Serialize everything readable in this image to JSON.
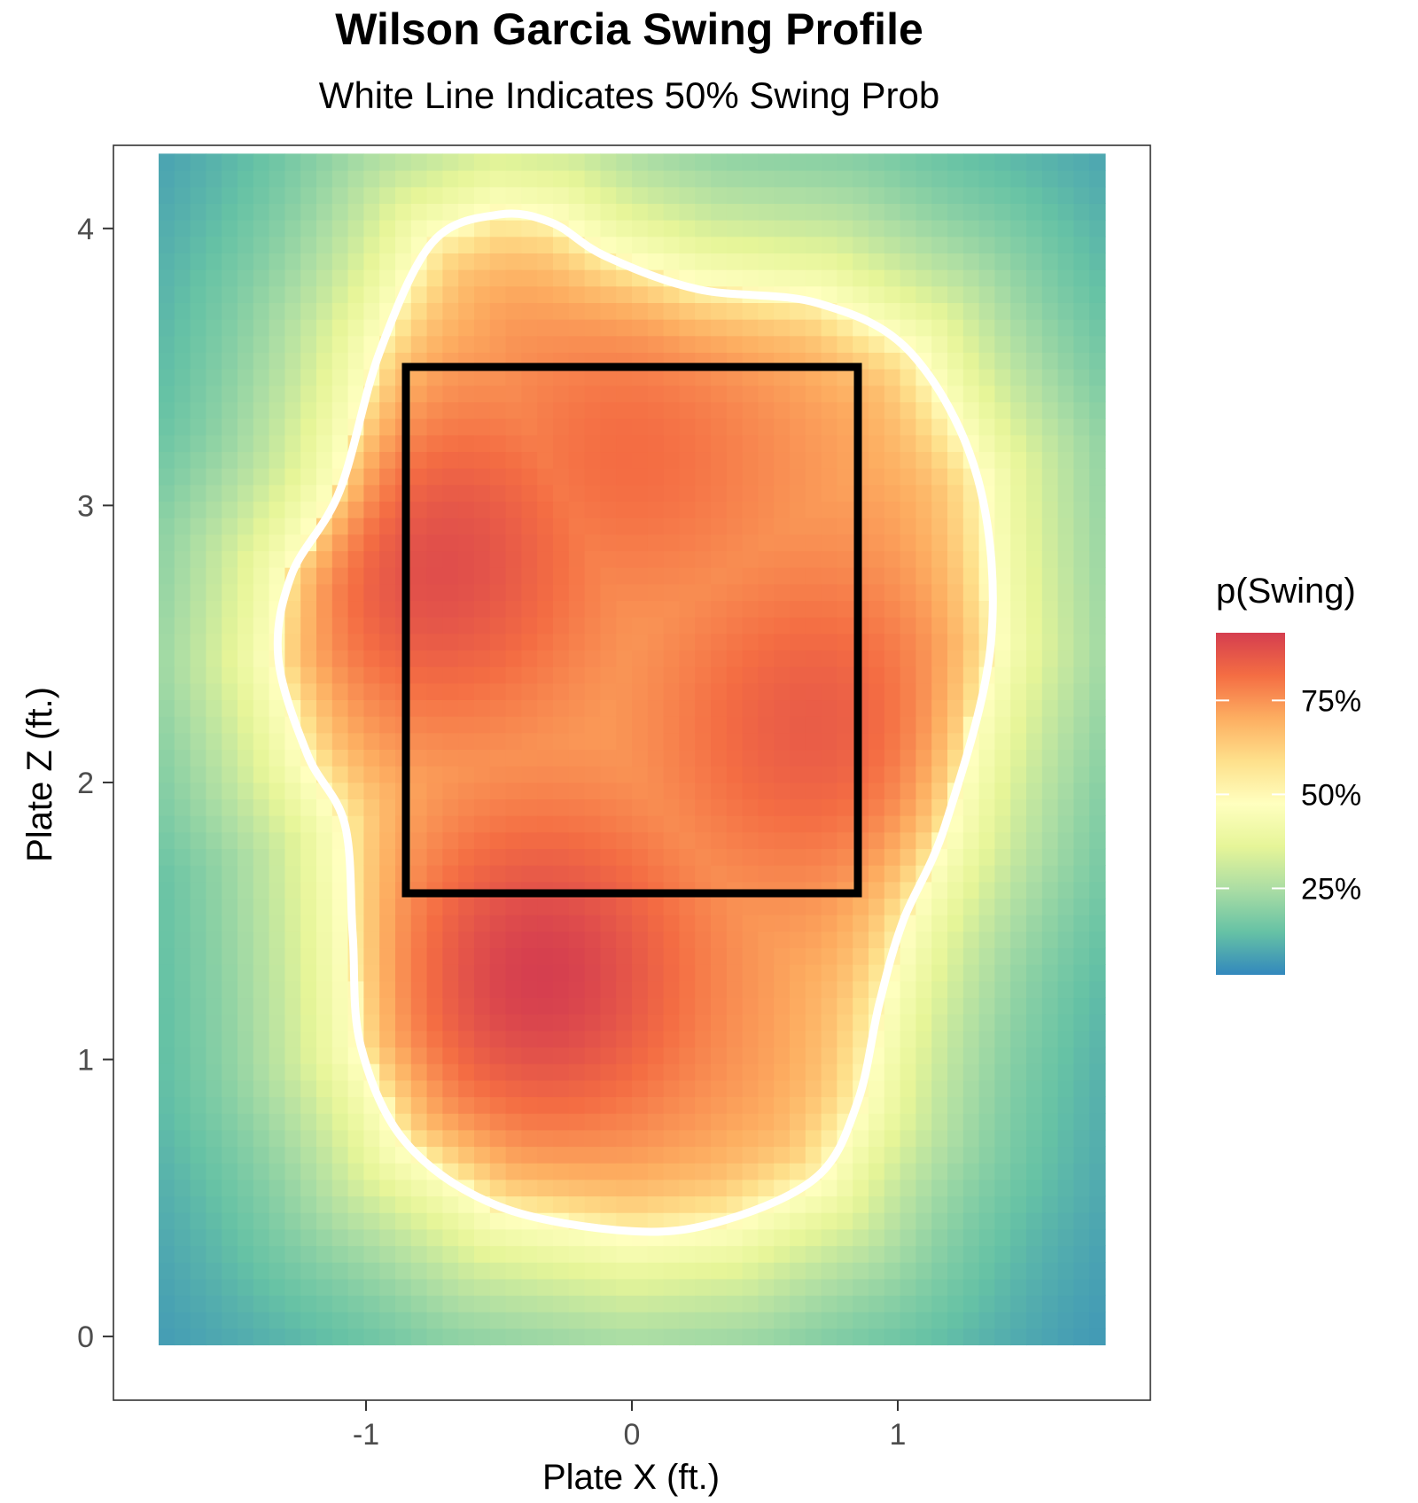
{
  "chart_data": {
    "type": "heatmap",
    "title": "Wilson Garcia Swing Profile",
    "subtitle": "White Line Indicates 50% Swing Prob",
    "xlabel": "Plate X (ft.)",
    "ylabel": "Plate Z (ft.)",
    "xlim": [
      -1.95,
      1.95
    ],
    "ylim": [
      -0.23,
      4.3
    ],
    "x_ticks": [
      {
        "value": -1,
        "label": "-1"
      },
      {
        "value": 0,
        "label": "0"
      },
      {
        "value": 1,
        "label": "1"
      }
    ],
    "y_ticks": [
      {
        "value": 0,
        "label": "0"
      },
      {
        "value": 1,
        "label": "1"
      },
      {
        "value": 2,
        "label": "2"
      },
      {
        "value": 3,
        "label": "3"
      },
      {
        "value": 4,
        "label": "4"
      }
    ],
    "grid": false,
    "heatmap_extent": {
      "x": [
        -1.78,
        1.78
      ],
      "z": [
        -0.03,
        4.27
      ]
    },
    "strike_zone": {
      "x": [
        -0.85,
        0.85
      ],
      "z": [
        1.6,
        3.5
      ]
    },
    "contour_50": [
      [
        -0.5,
        4.05
      ],
      [
        -0.75,
        3.95
      ],
      [
        -0.95,
        3.55
      ],
      [
        -1.1,
        3.05
      ],
      [
        -1.28,
        2.75
      ],
      [
        -1.33,
        2.45
      ],
      [
        -1.22,
        2.1
      ],
      [
        -1.08,
        1.85
      ],
      [
        -1.05,
        1.45
      ],
      [
        -1.02,
        1.05
      ],
      [
        -0.85,
        0.7
      ],
      [
        -0.5,
        0.47
      ],
      [
        0.0,
        0.38
      ],
      [
        0.35,
        0.42
      ],
      [
        0.7,
        0.58
      ],
      [
        0.85,
        0.85
      ],
      [
        0.93,
        1.2
      ],
      [
        1.02,
        1.5
      ],
      [
        1.18,
        1.85
      ],
      [
        1.35,
        2.5
      ],
      [
        1.3,
        3.1
      ],
      [
        1.05,
        3.55
      ],
      [
        0.7,
        3.73
      ],
      [
        0.25,
        3.78
      ],
      [
        -0.1,
        3.9
      ],
      [
        -0.3,
        4.02
      ],
      [
        -0.5,
        4.05
      ]
    ],
    "swing_peaks": [
      {
        "x": -0.35,
        "z": 1.3,
        "p": 0.93
      },
      {
        "x": -0.75,
        "z": 2.8,
        "p": 0.9
      },
      {
        "x": 0.7,
        "z": 2.2,
        "p": 0.86
      },
      {
        "x": 0.0,
        "z": 3.2,
        "p": 0.82
      }
    ],
    "legend": {
      "title": "p(Swing)",
      "placement": "right",
      "labels": [
        {
          "value": 0.75,
          "label": "75%"
        },
        {
          "value": 0.5,
          "label": "50%"
        },
        {
          "value": 0.25,
          "label": "25%"
        }
      ],
      "range": [
        0.02,
        0.93
      ]
    },
    "colors": [
      "#3288bd",
      "#66c2a5",
      "#abdda4",
      "#e6f598",
      "#ffffbf",
      "#fee08b",
      "#fdae61",
      "#f46d43",
      "#d53e4f"
    ]
  }
}
